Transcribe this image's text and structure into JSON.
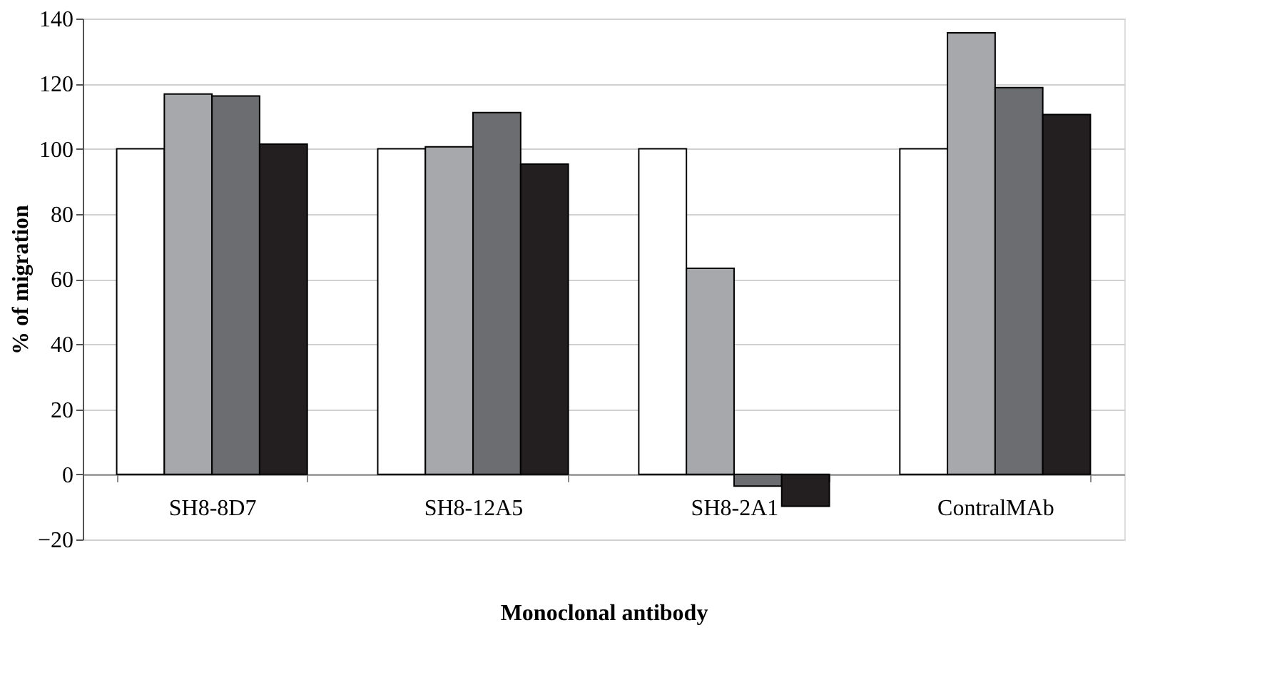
{
  "chart_data": {
    "type": "bar",
    "xlabel": "Monoclonal antibody",
    "ylabel": "% of migration",
    "categories": [
      "SH8-8D7",
      "SH8-12A5",
      "SH8-2A1",
      "ContralMAb"
    ],
    "series": [
      {
        "color": "#ffffff",
        "values": [
          100,
          100,
          100,
          100
        ]
      },
      {
        "color": "#a7a8ab",
        "values": [
          116.8,
          100.6,
          63.3,
          135.6
        ]
      },
      {
        "color": "#6c6d71",
        "values": [
          116.2,
          111.1,
          -3.6,
          118.8
        ]
      },
      {
        "color": "#231f20",
        "values": [
          101.4,
          95.3,
          -9.8,
          110.5
        ]
      }
    ],
    "ylim": [
      -20,
      140
    ],
    "yticks": [
      -20,
      0,
      20,
      40,
      60,
      80,
      100,
      120,
      140
    ],
    "grid": "y",
    "legend": false
  }
}
